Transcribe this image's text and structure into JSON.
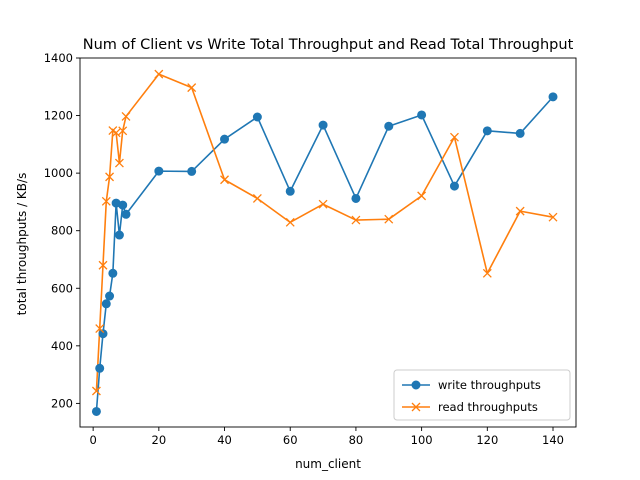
{
  "chart_data": {
    "type": "line",
    "title": "Num of Client vs Write Total Throughput and Read Total Throughput",
    "xlabel": "num_client",
    "ylabel": "total throughputs / KB/s",
    "xlim": [
      -4,
      147
    ],
    "ylim": [
      118,
      1400
    ],
    "xticks": [
      0,
      20,
      40,
      60,
      80,
      100,
      120,
      140
    ],
    "yticks": [
      200,
      400,
      600,
      800,
      1000,
      1200,
      1400
    ],
    "grid": false,
    "legend_position": "lower-right",
    "series": [
      {
        "name": "write throughputs",
        "color": "#1f77b4",
        "marker": "circle",
        "x": [
          1,
          2,
          3,
          4,
          5,
          6,
          7,
          8,
          9,
          10,
          20,
          30,
          40,
          50,
          60,
          70,
          80,
          90,
          100,
          110,
          120,
          130,
          140
        ],
        "y": [
          172,
          322,
          442,
          546,
          573,
          652,
          896,
          785,
          889,
          857,
          1007,
          1006,
          1118,
          1195,
          937,
          1167,
          912,
          1163,
          1202,
          955,
          1147,
          1138,
          1265
        ]
      },
      {
        "name": "read throughputs",
        "color": "#ff7f0e",
        "marker": "x",
        "x": [
          1,
          2,
          3,
          4,
          5,
          6,
          7,
          8,
          9,
          10,
          20,
          30,
          40,
          50,
          60,
          70,
          80,
          90,
          100,
          110,
          120,
          130,
          140
        ],
        "y": [
          243,
          460,
          680,
          902,
          987,
          1148,
          1140,
          1035,
          1147,
          1197,
          1344,
          1297,
          977,
          912,
          829,
          892,
          837,
          840,
          921,
          1125,
          652,
          868,
          847
        ]
      }
    ]
  }
}
